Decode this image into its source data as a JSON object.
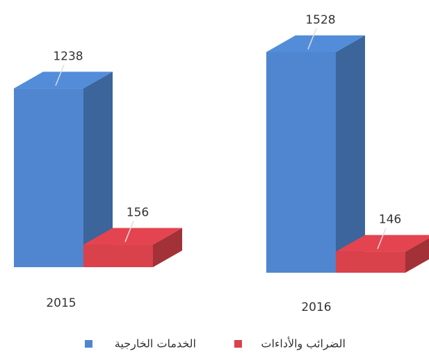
{
  "chart_data": {
    "type": "bar3d",
    "categories": [
      "2015",
      "2016"
    ],
    "series": [
      {
        "name": "الخدمات الخارجية",
        "color": "#4f86cf",
        "values": [
          1238,
          1528
        ]
      },
      {
        "name": "الضرائب والأداءات",
        "color": "#d9414b",
        "values": [
          156,
          146
        ]
      }
    ]
  }
}
